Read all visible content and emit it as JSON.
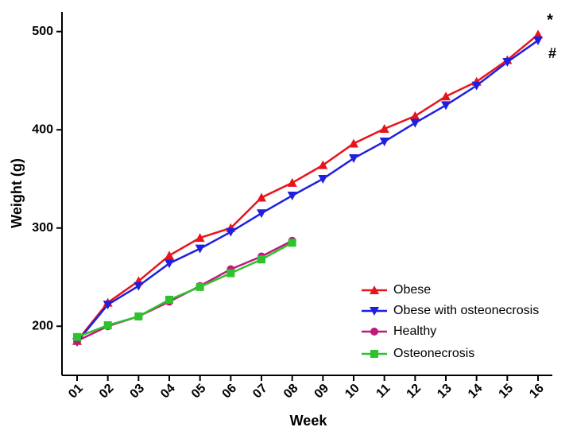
{
  "chart_data": {
    "type": "line",
    "x_label": "Week",
    "y_label": "Weight (g)",
    "categories": [
      "01",
      "02",
      "03",
      "04",
      "05",
      "06",
      "07",
      "08",
      "09",
      "10",
      "11",
      "12",
      "13",
      "14",
      "15",
      "16"
    ],
    "series": [
      {
        "name": "Obese",
        "color": "#e8141c",
        "marker": "triangle-up",
        "values": [
          185,
          224,
          246,
          272,
          290,
          300,
          331,
          346,
          364,
          386,
          401,
          414,
          434,
          449,
          471,
          497
        ]
      },
      {
        "name": "Obese with osteonecrosis",
        "color": "#1f1fe0",
        "marker": "triangle-down",
        "values": [
          184,
          222,
          241,
          264,
          279,
          296,
          315,
          333,
          350,
          371,
          388,
          407,
          425,
          445,
          469,
          491
        ]
      },
      {
        "name": "Healthy",
        "color": "#c0187a",
        "marker": "circle",
        "values": [
          185,
          200,
          210,
          225,
          241,
          258,
          271,
          287,
          null,
          null,
          null,
          null,
          null,
          null,
          null,
          null
        ]
      },
      {
        "name": "Osteonecrosis",
        "color": "#2ec22e",
        "marker": "square",
        "values": [
          189,
          201,
          210,
          227,
          240,
          254,
          268,
          285,
          null,
          null,
          null,
          null,
          null,
          null,
          null,
          null
        ]
      }
    ],
    "ylim": [
      150,
      520
    ],
    "yticks": [
      200,
      300,
      400,
      500
    ],
    "annotations": [
      "*",
      "#"
    ],
    "legend": "lower right",
    "grid": false
  }
}
